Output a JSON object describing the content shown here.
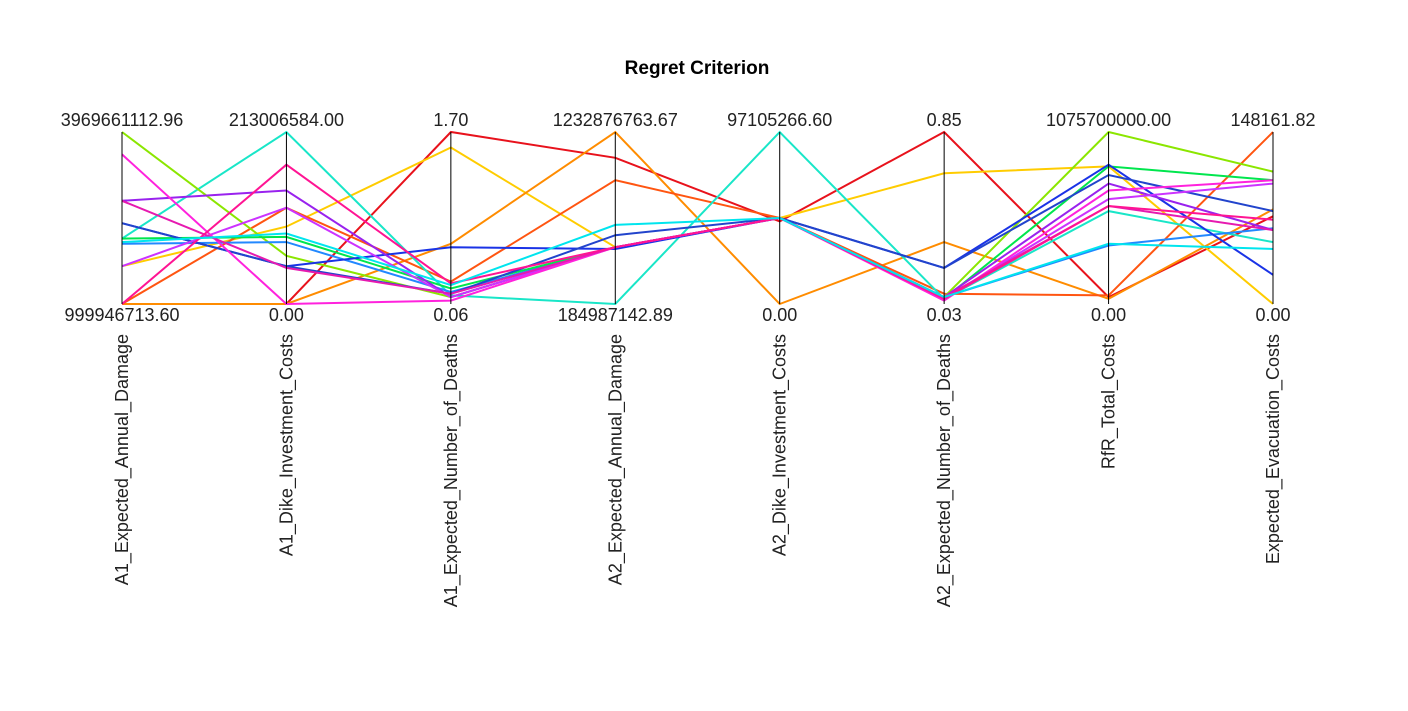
{
  "chart_data": {
    "type": "parallel_coordinates",
    "title": "Regret Criterion",
    "axes": [
      {
        "name": "A1_Expected_Annual_Damage",
        "max": "3969661112.96",
        "min": "999946713.60"
      },
      {
        "name": "A1_Dike_Investment_Costs",
        "max": "213006584.00",
        "min": "0.00"
      },
      {
        "name": "A1_Expected_Number_of_Deaths",
        "max": "1.70",
        "min": "0.06"
      },
      {
        "name": "A2_Expected_Annual_Damage",
        "max": "1232876763.67",
        "min": "184987142.89"
      },
      {
        "name": "A2_Dike_Investment_Costs",
        "max": "97105266.60",
        "min": "0.00"
      },
      {
        "name": "A2_Expected_Number_of_Deaths",
        "max": "0.85",
        "min": "0.03"
      },
      {
        "name": "RfR_Total_Costs",
        "max": "1075700000.00",
        "min": "0.00"
      },
      {
        "name": "Expected_Evacuation_Costs",
        "max": "148161.82",
        "min": "0.00"
      }
    ],
    "value_scale": "fraction of each axis range (0 = min, 1 = max)",
    "series": [
      {
        "color": "#e8121c",
        "values": [
          0.0,
          0.0,
          1.0,
          0.85,
          0.48,
          1.0,
          0.04,
          0.51
        ]
      },
      {
        "color": "#ffcc00",
        "values": [
          0.22,
          0.45,
          0.91,
          0.33,
          0.5,
          0.76,
          0.8,
          0.0
        ]
      },
      {
        "color": "#ff8c00",
        "values": [
          0.0,
          0.0,
          0.35,
          1.0,
          0.0,
          0.36,
          0.03,
          0.55
        ]
      },
      {
        "color": "#ff5511",
        "values": [
          0.0,
          0.56,
          0.13,
          0.72,
          0.5,
          0.06,
          0.05,
          1.0
        ]
      },
      {
        "color": "#19e6c8",
        "values": [
          0.38,
          1.0,
          0.05,
          0.0,
          1.0,
          0.03,
          0.54,
          0.36
        ]
      },
      {
        "color": "#8be600",
        "values": [
          1.0,
          0.28,
          0.04,
          0.33,
          0.5,
          0.04,
          1.0,
          0.77
        ]
      },
      {
        "color": "#2288ff",
        "values": [
          0.35,
          0.36,
          0.07,
          0.33,
          0.5,
          0.04,
          0.34,
          0.44
        ]
      },
      {
        "color": "#00e64d",
        "values": [
          0.38,
          0.39,
          0.09,
          0.33,
          0.5,
          0.03,
          0.8,
          0.72
        ]
      },
      {
        "color": "#1a33e6",
        "values": [
          0.47,
          0.22,
          0.33,
          0.32,
          0.5,
          0.21,
          0.81,
          0.17
        ]
      },
      {
        "color": "#2244cc",
        "values": [
          0.47,
          0.22,
          0.06,
          0.4,
          0.5,
          0.21,
          0.75,
          0.54
        ]
      },
      {
        "color": "#9922ee",
        "values": [
          0.6,
          0.66,
          0.04,
          0.33,
          0.5,
          0.04,
          0.7,
          0.43
        ]
      },
      {
        "color": "#cc33ff",
        "values": [
          0.22,
          0.56,
          0.04,
          0.33,
          0.5,
          0.03,
          0.61,
          0.7
        ]
      },
      {
        "color": "#ff22dd",
        "values": [
          0.87,
          0.0,
          0.02,
          0.33,
          0.5,
          0.02,
          0.66,
          0.72
        ]
      },
      {
        "color": "#e61ab0",
        "values": [
          0.6,
          0.21,
          0.06,
          0.33,
          0.5,
          0.04,
          0.57,
          0.43
        ]
      },
      {
        "color": "#ff1493",
        "values": [
          0.0,
          0.81,
          0.12,
          0.33,
          0.5,
          0.03,
          0.57,
          0.49
        ]
      },
      {
        "color": "#00e5ee",
        "values": [
          0.36,
          0.41,
          0.11,
          0.46,
          0.5,
          0.04,
          0.35,
          0.32
        ]
      }
    ]
  }
}
